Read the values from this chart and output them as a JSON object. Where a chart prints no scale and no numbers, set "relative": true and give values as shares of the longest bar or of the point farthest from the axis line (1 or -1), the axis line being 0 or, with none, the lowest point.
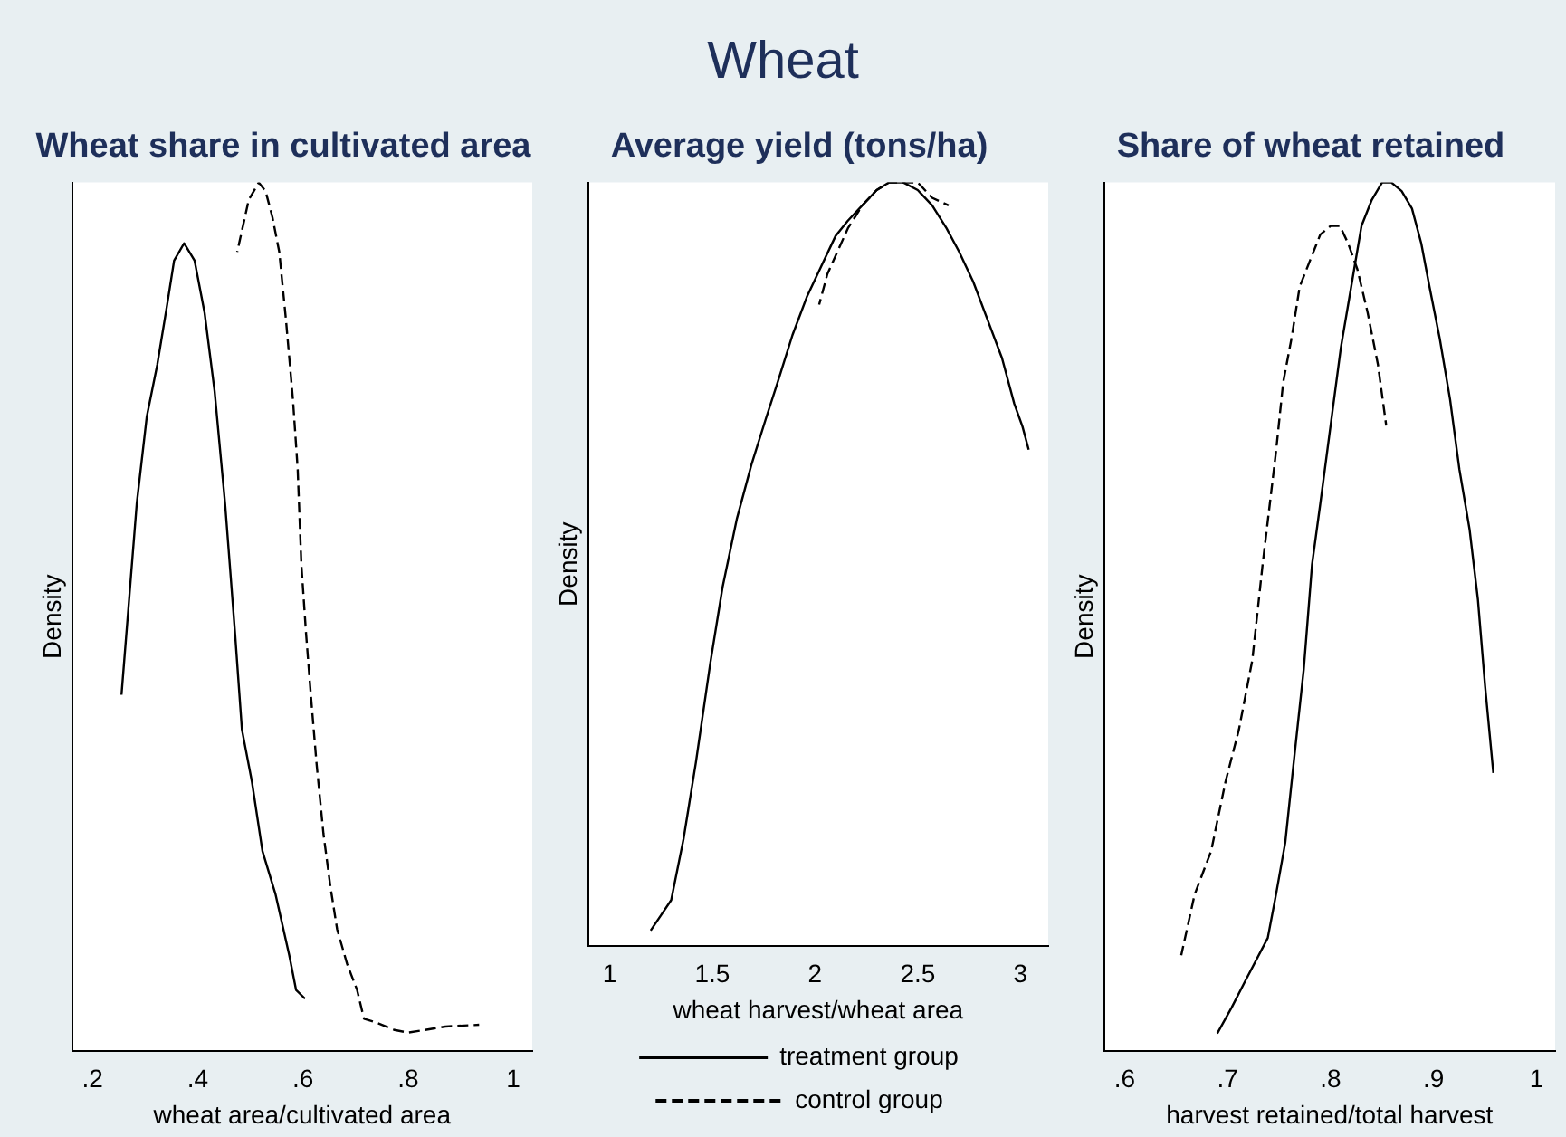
{
  "chart_data": [
    {
      "type": "line",
      "title": "Wheat share in cultivated area",
      "xlabel": "wheat area/cultivated area",
      "ylabel": "Density",
      "annotations": [
        "Wheat"
      ],
      "relative": true,
      "xlim": [
        0.161,
        1.036
      ],
      "xticks": [
        {
          "value": 0.2,
          "label": ".2"
        },
        {
          "value": 0.4,
          "label": ".4"
        },
        {
          "value": 0.6,
          "label": ".6"
        },
        {
          "value": 0.8,
          "label": ".8"
        },
        1
      ],
      "grid": false,
      "legend": false,
      "marker": "none",
      "series": [
        {
          "color": "#000000",
          "line_style": "solid",
          "x": [
            0.255,
            0.284,
            0.303,
            0.323,
            0.342,
            0.355,
            0.374,
            0.394,
            0.413,
            0.432,
            0.452,
            0.471,
            0.484,
            0.503,
            0.523,
            0.548,
            0.574,
            0.587,
            0.604
          ],
          "values": [
            0.41,
            0.63,
            0.73,
            0.79,
            0.86,
            0.91,
            0.93,
            0.91,
            0.85,
            0.76,
            0.63,
            0.48,
            0.37,
            0.31,
            0.23,
            0.18,
            0.11,
            0.07,
            0.06
          ]
        },
        {
          "color": "#000000",
          "line_style": "dashed",
          "x": [
            0.475,
            0.497,
            0.516,
            0.529,
            0.542,
            0.555,
            0.568,
            0.581,
            0.59,
            0.597,
            0.606,
            0.615,
            0.626,
            0.639,
            0.652,
            0.665,
            0.684,
            0.703,
            0.716,
            0.742,
            0.774,
            0.8,
            0.832,
            0.871,
            0.935
          ],
          "values": [
            0.92,
            0.98,
            1,
            0.99,
            0.96,
            0.92,
            0.84,
            0.75,
            0.67,
            0.56,
            0.48,
            0.41,
            0.33,
            0.25,
            0.19,
            0.14,
            0.1,
            0.07,
            0.037,
            0.032,
            0.024,
            0.021,
            0.024,
            0.028,
            0.03
          ]
        }
      ]
    },
    {
      "type": "line",
      "title": "Average yield (tons/ha)",
      "xlabel": "wheat harvest/wheat area",
      "ylabel": "Density",
      "relative": true,
      "xlim": [
        0.895,
        3.135
      ],
      "xticks": [
        1,
        1.5,
        2,
        2.5,
        3
      ],
      "grid": false,
      "legend": "bottom",
      "marker": "none",
      "series": [
        {
          "name": "treatment group",
          "color": "#000000",
          "line_style": "solid",
          "x": [
            1.2,
            1.25,
            1.3,
            1.36,
            1.42,
            1.49,
            1.55,
            1.62,
            1.69,
            1.76,
            1.82,
            1.89,
            1.96,
            2.03,
            2.1,
            2.16,
            2.23,
            2.3,
            2.36,
            2.43,
            2.5,
            2.57,
            2.64,
            2.7,
            2.77,
            2.84,
            2.91,
            2.97,
            3.01,
            3.04
          ],
          "values": [
            0.02,
            0.04,
            0.06,
            0.14,
            0.24,
            0.37,
            0.47,
            0.56,
            0.63,
            0.69,
            0.74,
            0.8,
            0.85,
            0.89,
            0.93,
            0.95,
            0.97,
            0.99,
            1,
            1,
            0.99,
            0.97,
            0.94,
            0.91,
            0.87,
            0.82,
            0.77,
            0.71,
            0.68,
            0.65
          ]
        },
        {
          "name": "control group",
          "color": "#000000",
          "line_style": "dashed",
          "x": [
            2.02,
            2.06,
            2.11,
            2.16,
            2.23,
            2.3,
            2.36,
            2.43,
            2.5,
            2.57,
            2.65
          ],
          "values": [
            0.84,
            0.88,
            0.91,
            0.94,
            0.97,
            0.99,
            1,
            1,
            1,
            0.98,
            0.97
          ]
        }
      ]
    },
    {
      "type": "line",
      "title": "Share of wheat retained",
      "xlabel": "harvest retained/total harvest",
      "ylabel": "Density",
      "relative": true,
      "xlim": [
        0.58,
        1.018
      ],
      "xticks": [
        {
          "value": 0.6,
          "label": ".6"
        },
        {
          "value": 0.7,
          "label": ".7"
        },
        {
          "value": 0.8,
          "label": ".8"
        },
        {
          "value": 0.9,
          "label": ".9"
        },
        1
      ],
      "grid": false,
      "legend": false,
      "marker": "none",
      "series": [
        {
          "color": "#000000",
          "line_style": "solid",
          "x": [
            0.69,
            0.704,
            0.717,
            0.739,
            0.747,
            0.756,
            0.764,
            0.774,
            0.782,
            0.79,
            0.8,
            0.81,
            0.82,
            0.83,
            0.84,
            0.85,
            0.859,
            0.869,
            0.879,
            0.888,
            0.896,
            0.906,
            0.916,
            0.925,
            0.935,
            0.943,
            0.95,
            0.958
          ],
          "values": [
            0.02,
            0.05,
            0.08,
            0.13,
            0.18,
            0.24,
            0.33,
            0.44,
            0.56,
            0.63,
            0.72,
            0.81,
            0.88,
            0.95,
            0.98,
            1,
            1,
            0.99,
            0.97,
            0.93,
            0.88,
            0.82,
            0.75,
            0.67,
            0.6,
            0.52,
            0.42,
            0.32
          ]
        },
        {
          "color": "#000000",
          "line_style": "dashed",
          "x": [
            0.655,
            0.668,
            0.684,
            0.698,
            0.711,
            0.724,
            0.734,
            0.741,
            0.747,
            0.754,
            0.762,
            0.77,
            0.78,
            0.79,
            0.8,
            0.809,
            0.817,
            0.826,
            0.836,
            0.846,
            0.854
          ],
          "values": [
            0.11,
            0.18,
            0.23,
            0.31,
            0.37,
            0.45,
            0.56,
            0.63,
            0.69,
            0.77,
            0.82,
            0.88,
            0.91,
            0.94,
            0.95,
            0.95,
            0.93,
            0.9,
            0.85,
            0.79,
            0.72
          ]
        }
      ]
    }
  ]
}
